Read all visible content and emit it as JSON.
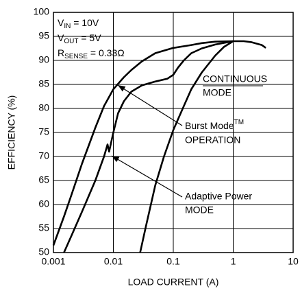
{
  "chart_data": {
    "type": "line",
    "xlabel": "LOAD CURRENT (A)",
    "ylabel": "EFFICIENCY (%)",
    "xscale": "log",
    "xlim": [
      0.001,
      10
    ],
    "ylim": [
      50,
      100
    ],
    "xticks": [
      0.001,
      0.01,
      0.1,
      1,
      10
    ],
    "yticks": [
      50,
      55,
      60,
      65,
      70,
      75,
      80,
      85,
      90,
      95,
      100
    ],
    "grid": true,
    "series": [
      {
        "color": "#000000",
        "x": [
          0.001,
          0.0015,
          0.002,
          0.003,
          0.005,
          0.007,
          0.01,
          0.015,
          0.02,
          0.03,
          0.05,
          0.1,
          0.2,
          0.3,
          0.5,
          1
        ],
        "values": [
          51.5,
          57.5,
          62,
          68.5,
          76,
          80.5,
          84,
          86.5,
          88,
          89.8,
          91.5,
          92.6,
          93.2,
          93.6,
          93.9,
          94
        ]
      },
      {
        "color": "#000000",
        "x": [
          0.0015,
          0.002,
          0.003,
          0.005,
          0.007,
          0.008,
          0.0085,
          0.01,
          0.012,
          0.015,
          0.02,
          0.03,
          0.05,
          0.08,
          0.1,
          0.12,
          0.15,
          0.2,
          0.3,
          0.5,
          1,
          1.5,
          2,
          3,
          3.5
        ],
        "values": [
          50,
          53.5,
          58.5,
          65,
          70,
          72.5,
          71,
          75,
          79,
          81.5,
          83.5,
          84.8,
          85.6,
          86.2,
          87,
          88.5,
          90,
          91.5,
          92.5,
          93.3,
          94,
          94,
          93.8,
          93.2,
          92.6
        ]
      },
      {
        "color": "#000000",
        "x": [
          0.028,
          0.035,
          0.05,
          0.07,
          0.1,
          0.15,
          0.2,
          0.3,
          0.5,
          0.7,
          1
        ],
        "values": [
          50,
          55.5,
          64,
          70,
          75.5,
          80.5,
          84,
          87.5,
          91,
          92.8,
          94
        ]
      }
    ],
    "annotations": {
      "vin": {
        "base": "V",
        "sub": "IN",
        "rest": " = 10V"
      },
      "vout": {
        "base": "V",
        "sub": "OUT",
        "rest": " = 5V"
      },
      "rsense": {
        "base": "R",
        "sub": "SENSE",
        "rest": " = 0.33Ω"
      },
      "continuous": [
        "CONTINUOUS",
        "MODE"
      ],
      "burst": {
        "base": "Burst Mode",
        "sup": "TM",
        "line2": "OPERATION"
      },
      "adaptive": [
        "Adaptive Power",
        "MODE"
      ]
    }
  }
}
